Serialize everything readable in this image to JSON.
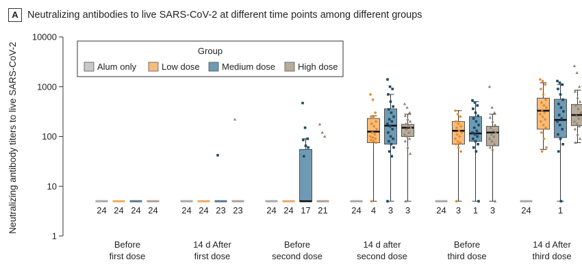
{
  "panel_letter": "A",
  "title": "Neutralizing antibodies to live SARS-CoV-2 at different time points among different groups",
  "colors": {
    "Alum only": "#c8c8c8",
    "Low dose": "#f6bc7c",
    "Medium dose": "#6f9ab3",
    "High dose": "#b8ab9b"
  },
  "dot_colors": {
    "Alum only": "#8a8a8a",
    "Low dose": "#e58a2a",
    "Medium dose": "#1c4a66",
    "High dose": "#8f8070"
  },
  "chart_data": {
    "type": "box",
    "ylabel": "Neutralizing antibody titers to live SARS-CoV-2",
    "yscale": "log",
    "ylim": [
      1,
      10000
    ],
    "yticks": [
      1,
      10,
      100,
      1000,
      10000
    ],
    "ytick_labels": [
      "1",
      "10",
      "100",
      "1000",
      "10000"
    ],
    "legend": {
      "title": "Group",
      "entries": [
        "Alum only",
        "Low dose",
        "Medium dose",
        "High dose"
      ],
      "placement": "top-left"
    },
    "categories": [
      [
        "Before",
        "first dose"
      ],
      [
        "14 d After",
        "first dose"
      ],
      [
        "Before",
        "second dose"
      ],
      [
        "14 d after",
        "second dose"
      ],
      [
        "Before",
        "third dose"
      ],
      [
        "14 d After",
        "third dose"
      ]
    ],
    "series": [
      {
        "name": "Alum only",
        "boxes": [
          {
            "q1": 5,
            "med": 5,
            "q3": 5,
            "lo": 5,
            "hi": 5,
            "n": "24"
          },
          {
            "q1": 5,
            "med": 5,
            "q3": 5,
            "lo": 5,
            "hi": 5,
            "n": "24"
          },
          {
            "q1": 5,
            "med": 5,
            "q3": 5,
            "lo": 5,
            "hi": 5,
            "n": "24"
          },
          {
            "q1": 5,
            "med": 5,
            "q3": 5,
            "lo": 5,
            "hi": 5,
            "n": "24"
          },
          {
            "q1": 5,
            "med": 5,
            "q3": 5,
            "lo": 5,
            "hi": 5,
            "n": "24"
          },
          {
            "q1": 5,
            "med": 5,
            "q3": 5,
            "lo": 5,
            "hi": 5,
            "n": "24"
          }
        ]
      },
      {
        "name": "Low dose",
        "boxes": [
          {
            "q1": 5,
            "med": 5,
            "q3": 5,
            "lo": 5,
            "hi": 5,
            "n": "24"
          },
          {
            "q1": 5,
            "med": 5,
            "q3": 5,
            "lo": 5,
            "hi": 5,
            "n": "24"
          },
          {
            "q1": 5,
            "med": 5,
            "q3": 5,
            "lo": 5,
            "hi": 5,
            "n": "24"
          },
          {
            "q1": 75,
            "med": 125,
            "q3": 230,
            "lo": 5,
            "hi": 260,
            "n": "4",
            "pts": [
              700,
              550,
              300,
              250,
              240,
              200,
              180,
              160,
              140,
              120,
              110,
              100,
              95,
              90,
              85,
              80,
              75,
              5
            ]
          },
          {
            "q1": 70,
            "med": 130,
            "q3": 200,
            "lo": 5,
            "hi": 330,
            "n": "3",
            "pts": [
              330,
              280,
              250,
              200,
              180,
              160,
              150,
              130,
              120,
              110,
              100,
              90,
              80,
              75,
              70,
              60,
              50,
              5
            ]
          },
          {
            "q1": 140,
            "med": 330,
            "q3": 590,
            "lo": 55,
            "hi": 1200,
            "n": "",
            "pts": [
              1400,
              1300,
              1100,
              900,
              700,
              550,
              480,
              420,
              380,
              340,
              300,
              280,
              250,
              220,
              200,
              170,
              150,
              120,
              90,
              60,
              50
            ]
          }
        ]
      },
      {
        "name": "Medium dose",
        "boxes": [
          {
            "q1": 5,
            "med": 5,
            "q3": 5,
            "lo": 5,
            "hi": 5,
            "n": "24"
          },
          {
            "q1": 5,
            "med": 5,
            "q3": 5,
            "lo": 5,
            "hi": 5,
            "n": "23",
            "pts": [
              42
            ]
          },
          {
            "q1": 5,
            "med": 5,
            "q3": 55,
            "lo": 5,
            "hi": 90,
            "n": "17",
            "pts": [
              470,
              150,
              90,
              85,
              65,
              60,
              40
            ]
          },
          {
            "q1": 70,
            "med": 165,
            "q3": 360,
            "lo": 5,
            "hi": 700,
            "n": "3",
            "pts": [
              1400,
              1000,
              900,
              700,
              500,
              400,
              350,
              300,
              250,
              220,
              200,
              180,
              160,
              140,
              120,
              100,
              90,
              80,
              70,
              60,
              50,
              40,
              5
            ]
          },
          {
            "q1": 80,
            "med": 115,
            "q3": 250,
            "lo": 5,
            "hi": 500,
            "n": "1",
            "pts": [
              530,
              480,
              420,
              360,
              300,
              260,
              230,
              200,
              170,
              150,
              130,
              120,
              110,
              100,
              90,
              80,
              70,
              60,
              50,
              5
            ]
          },
          {
            "q1": 95,
            "med": 215,
            "q3": 560,
            "lo": 5,
            "hi": 1100,
            "n": "1",
            "pts": [
              1300,
              1200,
              1100,
              900,
              700,
              550,
              450,
              380,
              320,
              270,
              230,
              200,
              170,
              140,
              110,
              90,
              70,
              50,
              5
            ]
          }
        ]
      },
      {
        "name": "High dose",
        "boxes": [
          {
            "q1": 5,
            "med": 5,
            "q3": 5,
            "lo": 5,
            "hi": 5,
            "n": "24"
          },
          {
            "q1": 5,
            "med": 5,
            "q3": 5,
            "lo": 5,
            "hi": 5,
            "n": "23",
            "pts": [
              220
            ]
          },
          {
            "q1": 5,
            "med": 5,
            "q3": 5,
            "lo": 5,
            "hi": 5,
            "n": "21",
            "pts": [
              175,
              120,
              100
            ]
          },
          {
            "q1": 100,
            "med": 150,
            "q3": 175,
            "lo": 5,
            "hi": 280,
            "n": "3",
            "pts": [
              450,
              380,
              300,
              260,
              220,
              200,
              180,
              160,
              150,
              140,
              120,
              110,
              100,
              90,
              80,
              60,
              45,
              5
            ]
          },
          {
            "q1": 65,
            "med": 120,
            "q3": 160,
            "lo": 5,
            "hi": 280,
            "n": "3",
            "pts": [
              1000,
              380,
              300,
              240,
              200,
              170,
              150,
              130,
              120,
              110,
              100,
              90,
              80,
              70,
              60,
              55,
              5
            ]
          },
          {
            "q1": 165,
            "med": 270,
            "q3": 440,
            "lo": 75,
            "hi": 850,
            "n": "",
            "pts": [
              2600,
              1900,
              1000,
              800,
              600,
              500,
              420,
              360,
              300,
              260,
              230,
              200,
              180,
              160,
              140,
              110,
              90,
              75
            ]
          }
        ]
      }
    ]
  }
}
